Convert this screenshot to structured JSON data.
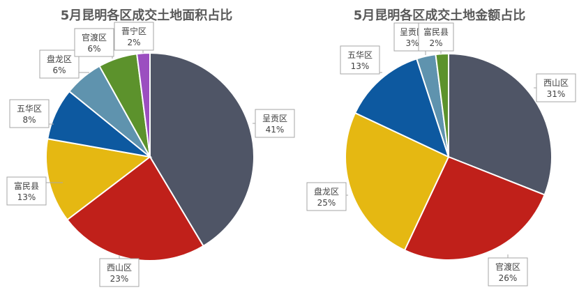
{
  "chart_data": [
    {
      "type": "pie",
      "title": "5月昆明各区成交土地面积占比",
      "slices": [
        {
          "label": "呈贡区",
          "value": 41,
          "value_label": "41%",
          "color": "#4f5566"
        },
        {
          "label": "西山区",
          "value": 23,
          "value_label": "23%",
          "color": "#c0201a"
        },
        {
          "label": "富民县",
          "value": 13,
          "value_label": "13%",
          "color": "#e5b812"
        },
        {
          "label": "五华区",
          "value": 8,
          "value_label": "8%",
          "color": "#0d59a0"
        },
        {
          "label": "盘龙区",
          "value": 6,
          "value_label": "6%",
          "color": "#5f93ae"
        },
        {
          "label": "官渡区",
          "value": 6,
          "value_label": "6%",
          "color": "#5c922c"
        },
        {
          "label": "晋宁区",
          "value": 2,
          "value_label": "2%",
          "color": "#9b4fc0"
        }
      ]
    },
    {
      "type": "pie",
      "title": "5月昆明各区成交土地金额占比",
      "slices": [
        {
          "label": "西山区",
          "value": 31,
          "value_label": "31%",
          "color": "#4f5566"
        },
        {
          "label": "官渡区",
          "value": 26,
          "value_label": "26%",
          "color": "#c0201a"
        },
        {
          "label": "盘龙区",
          "value": 25,
          "value_label": "25%",
          "color": "#e5b812"
        },
        {
          "label": "五华区",
          "value": 13,
          "value_label": "13%",
          "color": "#0d59a0"
        },
        {
          "label": "呈贡区",
          "value": 3,
          "value_label": "3%",
          "color": "#5f93ae"
        },
        {
          "label": "富民县",
          "value": 2,
          "value_label": "2%",
          "color": "#5c922c"
        }
      ]
    }
  ]
}
